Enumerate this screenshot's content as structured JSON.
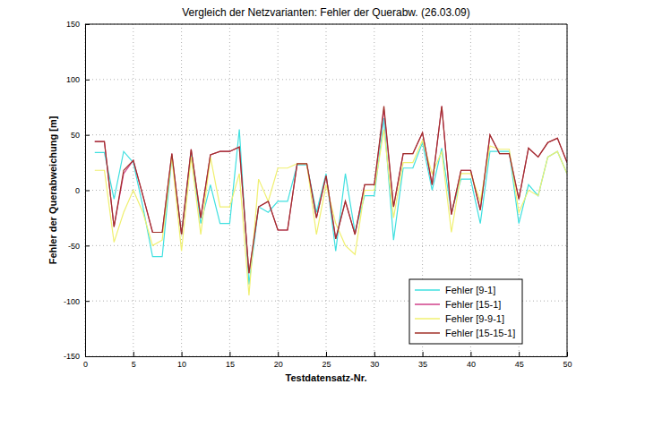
{
  "chart_data": {
    "type": "line",
    "title": "Vergleich der Netzvarianten: Fehler der Querabw. (26.03.09)",
    "x_label": "Testdatensatz-Nr.",
    "y_label": "Fehler der Querabweichung [m]",
    "x": [
      1,
      2,
      3,
      4,
      5,
      6,
      7,
      8,
      9,
      10,
      11,
      12,
      13,
      14,
      15,
      16,
      17,
      18,
      19,
      20,
      21,
      22,
      23,
      24,
      25,
      26,
      27,
      28,
      29,
      30,
      31,
      32,
      33,
      34,
      35,
      36,
      37,
      38,
      39,
      40,
      41,
      42,
      43,
      44,
      45,
      46,
      47,
      48,
      49,
      50
    ],
    "xlim": [
      0,
      50
    ],
    "xticks": [
      0,
      5,
      10,
      15,
      20,
      25,
      30,
      35,
      40,
      45,
      50
    ],
    "ylim": [
      -150,
      150
    ],
    "yticks": [
      -150,
      -100,
      -50,
      0,
      50,
      100,
      150
    ],
    "grid": true,
    "legend": "lower right",
    "series": [
      {
        "name": "Fehler [9-1]",
        "color": "#40e0e0",
        "values": [
          34,
          34,
          -8,
          35,
          25,
          -15,
          -60,
          -60,
          30,
          -40,
          33,
          -30,
          5,
          -30,
          -30,
          55,
          -85,
          -15,
          -20,
          -10,
          -10,
          23,
          23,
          -20,
          15,
          -55,
          15,
          -38,
          -5,
          -5,
          65,
          -45,
          20,
          20,
          43,
          0,
          38,
          -20,
          10,
          10,
          -30,
          35,
          35,
          35,
          -30,
          5,
          -5,
          30,
          35,
          15
        ]
      },
      {
        "name": "Fehler [15-1]",
        "color": "#d0408a",
        "values": [
          44,
          44,
          -33,
          15,
          27,
          -5,
          -38,
          -38,
          33,
          -40,
          37,
          -25,
          32,
          35,
          35,
          39,
          -75,
          -15,
          -10,
          -36,
          -36,
          24,
          24,
          -25,
          13,
          -44,
          -10,
          -40,
          5,
          5,
          73,
          -15,
          33,
          33,
          52,
          5,
          76,
          -22,
          18,
          18,
          -18,
          50,
          33,
          33,
          -8,
          38,
          30,
          43,
          47,
          25
        ]
      },
      {
        "name": "Fehler [9-9-1]",
        "color": "#f0f070",
        "values": [
          18,
          18,
          -47,
          -20,
          0,
          -20,
          -50,
          -45,
          30,
          -55,
          30,
          -40,
          30,
          -15,
          -15,
          15,
          -95,
          10,
          -10,
          20,
          20,
          24,
          24,
          -40,
          5,
          -30,
          -50,
          -58,
          0,
          0,
          55,
          -25,
          25,
          25,
          45,
          15,
          35,
          -38,
          15,
          15,
          -10,
          40,
          37,
          37,
          -20,
          0,
          -5,
          30,
          35,
          15
        ]
      },
      {
        "name": "Fehler [15-15-1]",
        "color": "#a03028",
        "values": [
          44,
          44,
          -33,
          18,
          27,
          -5,
          -38,
          -38,
          33,
          -40,
          37,
          -25,
          32,
          35,
          35,
          39,
          -75,
          -15,
          -10,
          -36,
          -36,
          24,
          24,
          -25,
          13,
          -44,
          -10,
          -40,
          5,
          5,
          76,
          -15,
          33,
          33,
          52,
          5,
          76,
          -22,
          18,
          18,
          -18,
          50,
          33,
          33,
          -8,
          38,
          30,
          43,
          47,
          25
        ]
      }
    ]
  }
}
